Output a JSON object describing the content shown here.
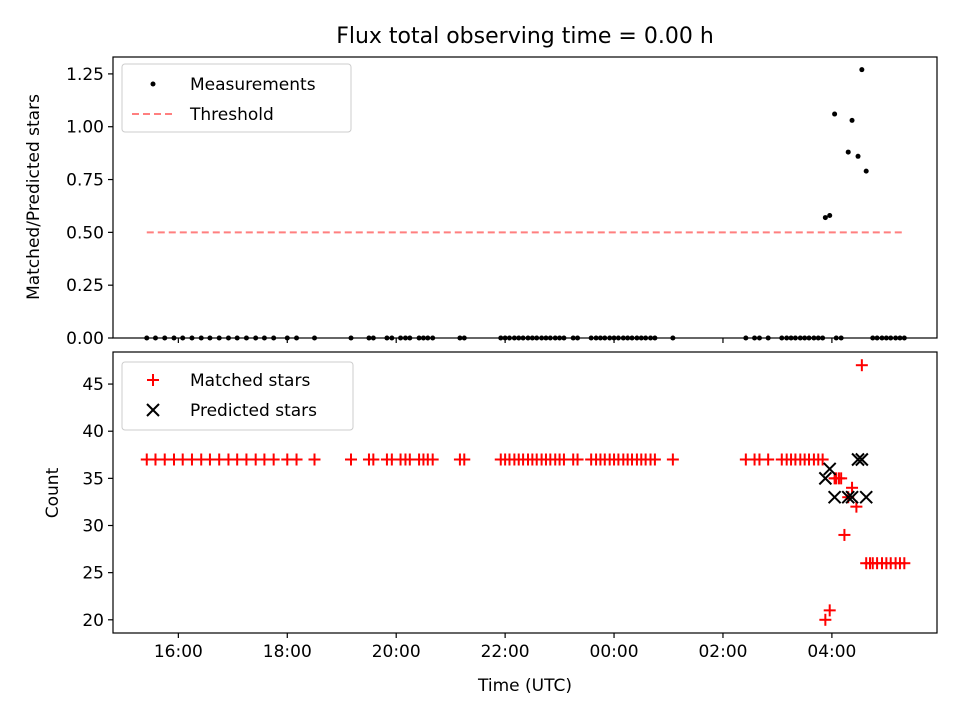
{
  "figure_title": "Flux total observing time = 0.00 h",
  "colors": {
    "measurement": "#000000",
    "threshold": "#ff7f7f",
    "matched": "#ff0000",
    "predicted": "#000000",
    "axis": "#000000",
    "legend_border": "#cccccc"
  },
  "chart_data": [
    {
      "id": "ratio",
      "type": "scatter",
      "title": "Flux total observing time = 0.00 h",
      "xlabel": "",
      "ylabel": "Matched/Predicted stars",
      "xlim": [
        14.8,
        29.93
      ],
      "ylim": [
        0,
        1.33
      ],
      "yticks": [
        0,
        0.25,
        0.5,
        0.75,
        1.0,
        1.25
      ],
      "ytick_labels": [
        "0.00",
        "0.25",
        "0.50",
        "0.75",
        "1.00",
        "1.25"
      ],
      "xticks": [
        16,
        18,
        20,
        22,
        24,
        26,
        28
      ],
      "xtick_labels": [
        "",
        "",
        "",
        "",
        "",
        "",
        ""
      ],
      "legend": {
        "position": "top-left",
        "entries": [
          "Measurements",
          "Threshold"
        ]
      },
      "series": [
        {
          "name": "Measurements",
          "kind": "points",
          "x": [
            15.42,
            15.58,
            15.75,
            15.92,
            16.08,
            16.25,
            16.42,
            16.58,
            16.75,
            16.92,
            17.08,
            17.25,
            17.42,
            17.58,
            17.75,
            18.0,
            18.17,
            18.5,
            19.17,
            19.5,
            19.58,
            19.83,
            19.92,
            20.08,
            20.17,
            20.25,
            20.42,
            20.5,
            20.58,
            20.67,
            21.17,
            21.25,
            21.92,
            22.0,
            22.08,
            22.17,
            22.25,
            22.33,
            22.42,
            22.5,
            22.58,
            22.67,
            22.75,
            22.83,
            22.92,
            23.0,
            23.08,
            23.25,
            23.33,
            23.58,
            23.67,
            23.75,
            23.83,
            23.92,
            24.0,
            24.08,
            24.17,
            24.25,
            24.33,
            24.42,
            24.5,
            24.58,
            24.67,
            24.75,
            25.08,
            26.42,
            26.58,
            26.67,
            26.83,
            27.08,
            27.17,
            27.25,
            27.33,
            27.42,
            27.5,
            27.58,
            27.67,
            27.75,
            27.83,
            28.08,
            28.17,
            28.75,
            28.83,
            28.92,
            29.0,
            29.08,
            29.17,
            29.25,
            29.33
          ],
          "y": [
            0,
            0,
            0,
            0,
            0,
            0,
            0,
            0,
            0,
            0,
            0,
            0,
            0,
            0,
            0,
            0,
            0,
            0,
            0,
            0,
            0,
            0,
            0,
            0,
            0,
            0,
            0,
            0,
            0,
            0,
            0,
            0,
            0,
            0,
            0,
            0,
            0,
            0,
            0,
            0,
            0,
            0,
            0,
            0,
            0,
            0,
            0,
            0,
            0,
            0,
            0,
            0,
            0,
            0,
            0,
            0,
            0,
            0,
            0,
            0,
            0,
            0,
            0,
            0,
            0,
            0,
            0,
            0,
            0,
            0,
            0,
            0,
            0,
            0,
            0,
            0,
            0,
            0,
            0,
            0,
            0,
            0,
            0,
            0,
            0,
            0,
            0,
            0,
            0
          ]
        },
        {
          "name": "Measurements",
          "kind": "points",
          "x": [
            27.88,
            27.96,
            28.05,
            28.3,
            28.37,
            28.48,
            28.55,
            28.63
          ],
          "y": [
            0.57,
            0.58,
            1.06,
            0.88,
            1.03,
            0.86,
            1.27,
            0.79
          ]
        },
        {
          "name": "Threshold",
          "kind": "dashed-line",
          "x": [
            15.42,
            29.33
          ],
          "y": [
            0.5,
            0.5
          ]
        }
      ]
    },
    {
      "id": "counts",
      "type": "scatter",
      "title": "",
      "xlabel": "Time (UTC)",
      "ylabel": "Count",
      "xlim": [
        14.8,
        29.93
      ],
      "ylim": [
        18.6,
        48.4
      ],
      "yticks": [
        20,
        25,
        30,
        35,
        40,
        45
      ],
      "ytick_labels": [
        "20",
        "25",
        "30",
        "35",
        "40",
        "45"
      ],
      "xticks": [
        16,
        18,
        20,
        22,
        24,
        26,
        28
      ],
      "xtick_labels": [
        "16:00",
        "18:00",
        "20:00",
        "22:00",
        "00:00",
        "02:00",
        "04:00"
      ],
      "legend": {
        "position": "top-left",
        "entries": [
          "Matched stars",
          "Predicted stars"
        ]
      },
      "series": [
        {
          "name": "Matched stars",
          "kind": "plus",
          "x": [
            15.42,
            15.58,
            15.75,
            15.92,
            16.08,
            16.25,
            16.42,
            16.58,
            16.75,
            16.92,
            17.08,
            17.25,
            17.42,
            17.58,
            17.75,
            18.0,
            18.17,
            18.5,
            19.17,
            19.5,
            19.58,
            19.83,
            19.92,
            20.08,
            20.17,
            20.25,
            20.42,
            20.5,
            20.58,
            20.67,
            21.17,
            21.25,
            21.92,
            22.0,
            22.08,
            22.17,
            22.25,
            22.33,
            22.42,
            22.5,
            22.58,
            22.67,
            22.75,
            22.83,
            22.92,
            23.0,
            23.08,
            23.25,
            23.33,
            23.58,
            23.67,
            23.75,
            23.83,
            23.92,
            24.0,
            24.08,
            24.17,
            24.25,
            24.33,
            24.42,
            24.5,
            24.58,
            24.67,
            24.75,
            25.08,
            26.42,
            26.58,
            26.67,
            26.83,
            27.08,
            27.17,
            27.25,
            27.33,
            27.42,
            27.5,
            27.58,
            27.67,
            27.75,
            27.83,
            28.08,
            28.17,
            28.75,
            28.83,
            28.92,
            29.0,
            29.08,
            29.17,
            29.25,
            29.33,
            27.88,
            27.96,
            28.05,
            28.13,
            28.23,
            28.3,
            28.37,
            28.45,
            28.55,
            28.63,
            28.7
          ],
          "y": [
            37,
            37,
            37,
            37,
            37,
            37,
            37,
            37,
            37,
            37,
            37,
            37,
            37,
            37,
            37,
            37,
            37,
            37,
            37,
            37,
            37,
            37,
            37,
            37,
            37,
            37,
            37,
            37,
            37,
            37,
            37,
            37,
            37,
            37,
            37,
            37,
            37,
            37,
            37,
            37,
            37,
            37,
            37,
            37,
            37,
            37,
            37,
            37,
            37,
            37,
            37,
            37,
            37,
            37,
            37,
            37,
            37,
            37,
            37,
            37,
            37,
            37,
            37,
            37,
            37,
            37,
            37,
            37,
            37,
            37,
            37,
            37,
            37,
            37,
            37,
            37,
            37,
            37,
            37,
            35,
            35,
            26,
            26,
            26,
            26,
            26,
            26,
            26,
            26,
            20,
            21,
            35,
            35,
            29,
            33,
            34,
            32,
            47,
            26,
            26
          ]
        },
        {
          "name": "Predicted stars",
          "kind": "cross",
          "x": [
            27.88,
            27.96,
            28.05,
            28.3,
            28.37,
            28.48,
            28.55,
            28.63
          ],
          "y": [
            35,
            36,
            33,
            33,
            33,
            37,
            37,
            33
          ]
        }
      ]
    }
  ]
}
